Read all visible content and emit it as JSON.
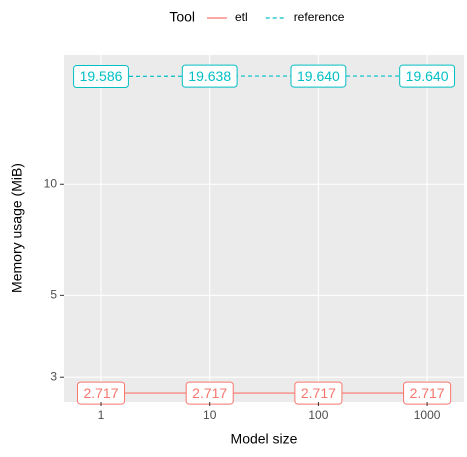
{
  "chart_data": {
    "type": "line",
    "legend_title": "Tool",
    "legend_position": "top",
    "xlabel": "Model size",
    "ylabel": "Memory usage (MiB)",
    "categories": [
      "1",
      "10",
      "100",
      "1000"
    ],
    "series": [
      {
        "name": "etl",
        "color": "#F8766D",
        "linestyle": "solid",
        "values": [
          2.717,
          2.717,
          2.717,
          2.717
        ],
        "value_labels": [
          "2.717",
          "2.717",
          "2.717",
          "2.717"
        ]
      },
      {
        "name": "reference",
        "color": "#00BFC4",
        "linestyle": "dashed",
        "values": [
          19.586,
          19.638,
          19.64,
          19.64
        ],
        "value_labels": [
          "19.586",
          "19.638",
          "19.640",
          "19.640"
        ]
      }
    ],
    "ylog": true,
    "ylim": [
      2.57,
      22.4
    ],
    "yticks": [
      3,
      5,
      10
    ],
    "grid": true
  }
}
